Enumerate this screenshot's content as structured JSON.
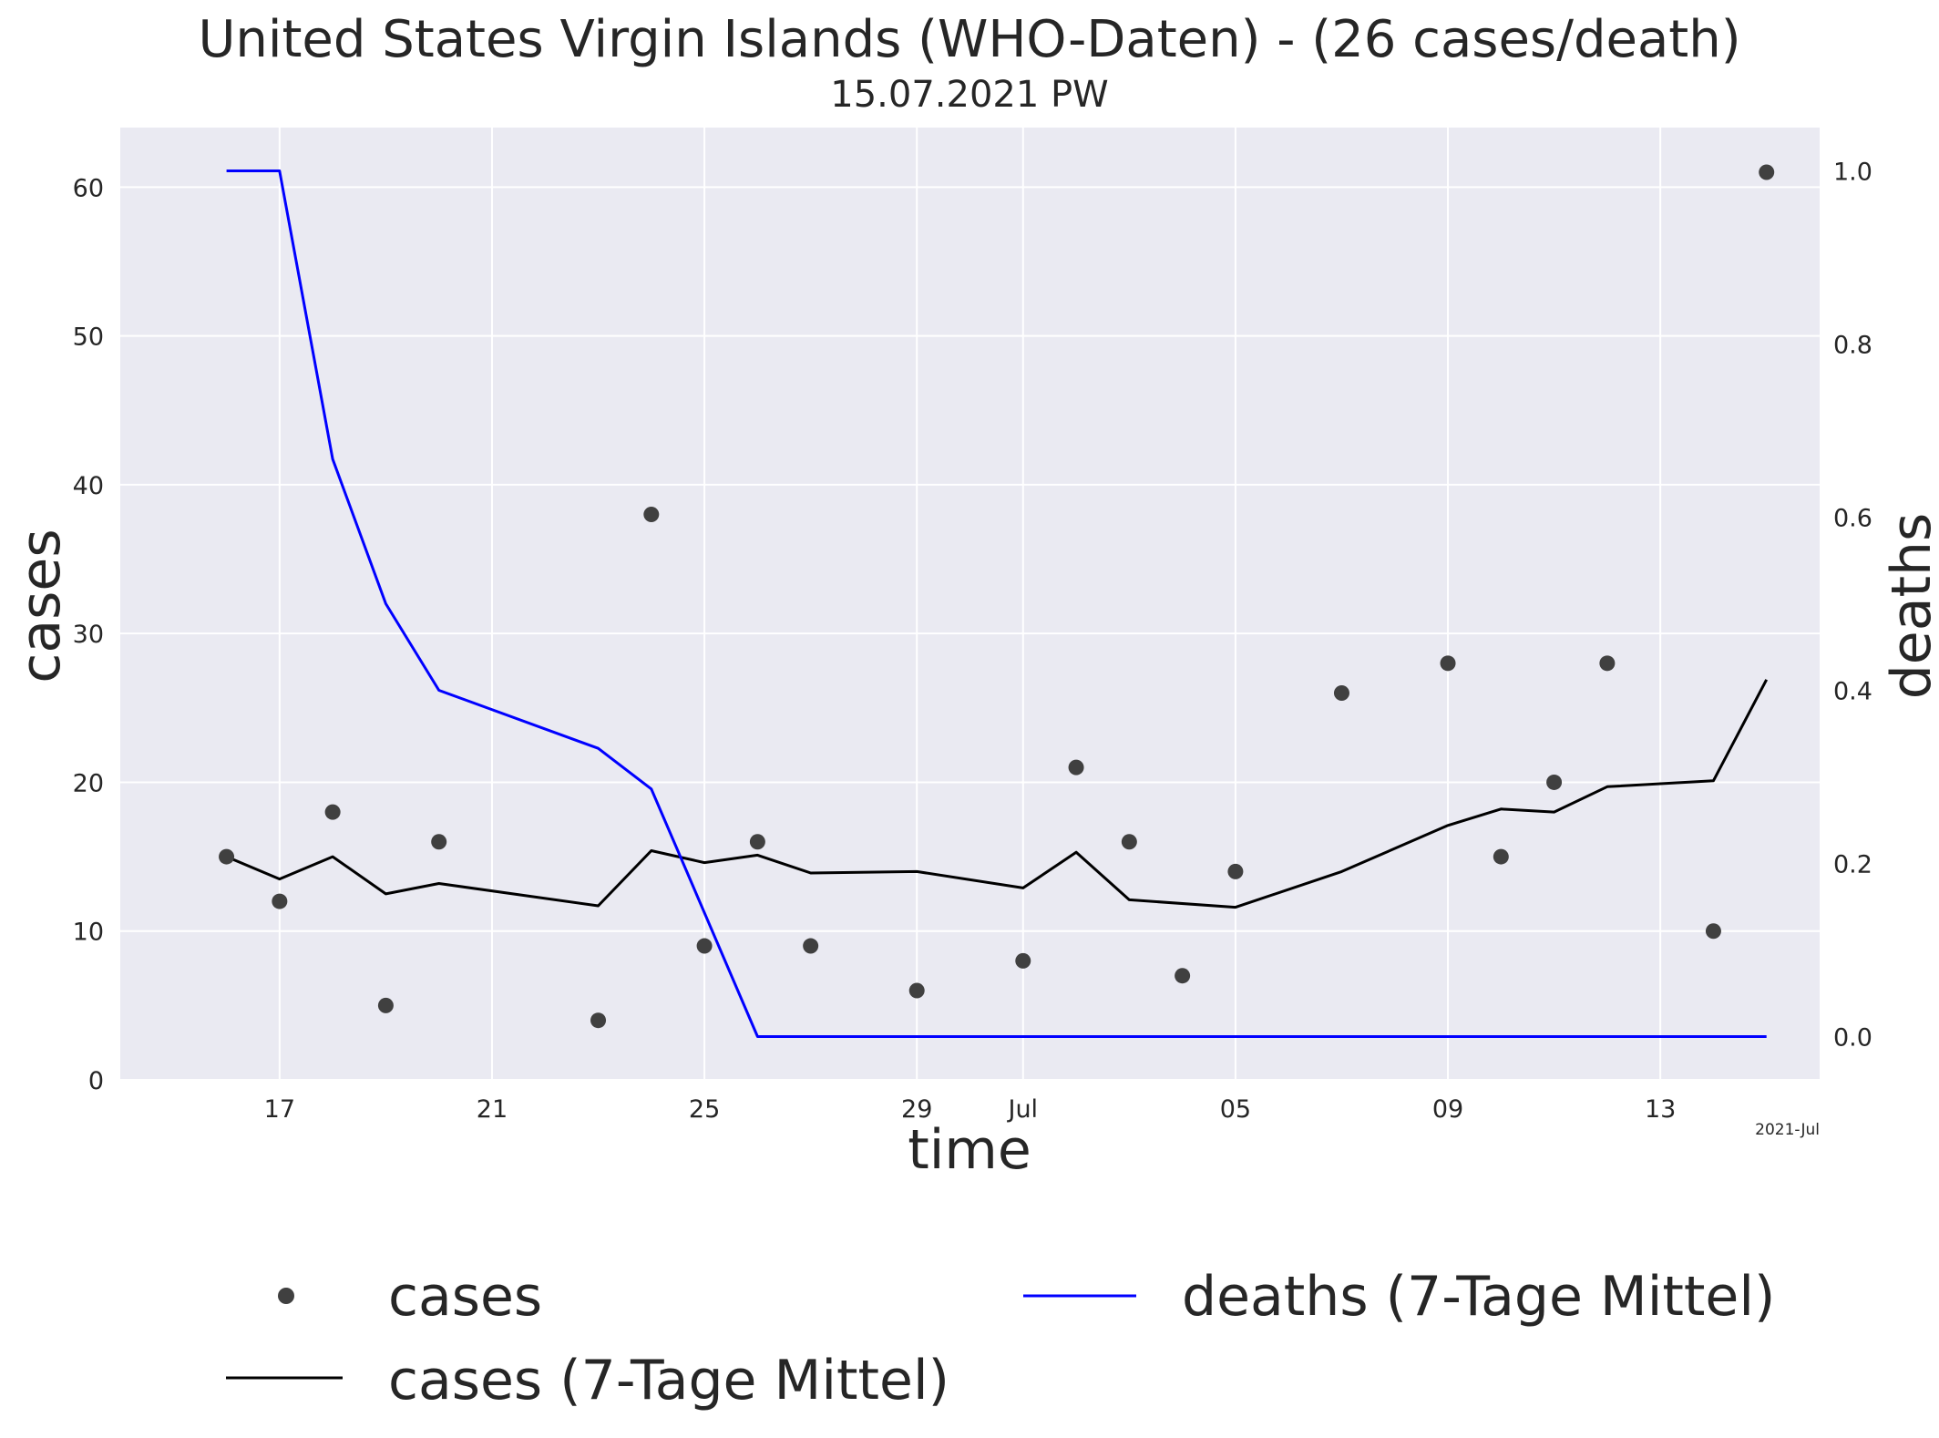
{
  "chart_data": {
    "type": "line",
    "title": "United States Virgin Islands (WHO-Daten) - (26 cases/death)",
    "subtitle": "15.07.2021 PW",
    "xlabel": "time",
    "ylabel_left": "cases",
    "ylabel_right": "deaths",
    "x_offset_label": "2021-Jul",
    "ylim_left": [
      0,
      64
    ],
    "ylim_right": [
      -0.05,
      1.05
    ],
    "xlim": [
      "2021-06-14",
      "2021-07-16"
    ],
    "yticks_left": [
      "0",
      "10",
      "20",
      "30",
      "40",
      "50",
      "60"
    ],
    "yticks_right": [
      "0.0",
      "0.2",
      "0.4",
      "0.6",
      "0.8",
      "1.0"
    ],
    "xticks": [
      {
        "date": "2021-06-17",
        "label": "17"
      },
      {
        "date": "2021-06-21",
        "label": "21"
      },
      {
        "date": "2021-06-25",
        "label": "25"
      },
      {
        "date": "2021-06-29",
        "label": "29"
      },
      {
        "date": "2021-07-01",
        "label": "Jul"
      },
      {
        "date": "2021-07-05",
        "label": "05"
      },
      {
        "date": "2021-07-09",
        "label": "09"
      },
      {
        "date": "2021-07-13",
        "label": "13"
      }
    ],
    "grid": true,
    "legend_position": "bottom",
    "colors": {
      "plot_background": "#eaeaf2",
      "grid": "#ffffff",
      "cases_points": "#404040",
      "cases_line": "#000000",
      "deaths_line": "#0000ff",
      "deaths_label": "#0000ff"
    },
    "series": [
      {
        "name": "cases",
        "kind": "scatter",
        "axis": "left",
        "x": [
          "2021-06-16",
          "2021-06-17",
          "2021-06-18",
          "2021-06-19",
          "2021-06-20",
          "2021-06-23",
          "2021-06-24",
          "2021-06-25",
          "2021-06-26",
          "2021-06-27",
          "2021-06-29",
          "2021-07-01",
          "2021-07-02",
          "2021-07-03",
          "2021-07-04",
          "2021-07-05",
          "2021-07-07",
          "2021-07-09",
          "2021-07-10",
          "2021-07-11",
          "2021-07-12",
          "2021-07-14",
          "2021-07-15"
        ],
        "y": [
          15,
          12,
          18,
          5,
          16,
          4,
          38,
          9,
          16,
          9,
          6,
          8,
          21,
          16,
          7,
          14,
          26,
          28,
          15,
          20,
          28,
          10,
          61
        ]
      },
      {
        "name": "cases (7-Tage Mittel)",
        "kind": "line",
        "axis": "left",
        "x": [
          "2021-06-16",
          "2021-06-17",
          "2021-06-18",
          "2021-06-19",
          "2021-06-20",
          "2021-06-23",
          "2021-06-24",
          "2021-06-25",
          "2021-06-26",
          "2021-06-27",
          "2021-06-29",
          "2021-07-01",
          "2021-07-02",
          "2021-07-03",
          "2021-07-05",
          "2021-07-07",
          "2021-07-09",
          "2021-07-10",
          "2021-07-11",
          "2021-07-12",
          "2021-07-14",
          "2021-07-15"
        ],
        "y": [
          15.0,
          13.5,
          15.0,
          12.5,
          13.2,
          11.7,
          15.4,
          14.6,
          15.1,
          13.9,
          14.0,
          12.9,
          15.3,
          12.1,
          11.6,
          14.0,
          17.1,
          18.2,
          18.0,
          19.7,
          20.1,
          26.9
        ]
      },
      {
        "name": "deaths (7-Tage Mittel)",
        "kind": "line",
        "axis": "right",
        "x": [
          "2021-06-16",
          "2021-06-17",
          "2021-06-18",
          "2021-06-19",
          "2021-06-20",
          "2021-06-23",
          "2021-06-24",
          "2021-06-26",
          "2021-07-15"
        ],
        "y": [
          1.0,
          1.0,
          0.667,
          0.5,
          0.4,
          0.333,
          0.286,
          0.0,
          0.0
        ]
      }
    ],
    "legend": {
      "entries": [
        {
          "label": "cases",
          "symbol": "point"
        },
        {
          "label": "deaths (7-Tage Mittel)",
          "symbol": "line-blue"
        },
        {
          "label": "cases (7-Tage Mittel)",
          "symbol": "line-black"
        }
      ]
    }
  }
}
